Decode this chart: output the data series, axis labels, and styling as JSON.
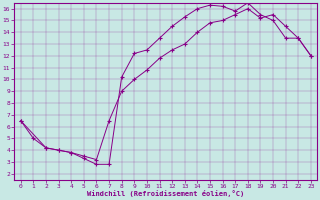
{
  "xlabel": "Windchill (Refroidissement éolien,°C)",
  "bg_color": "#c8e8e4",
  "line_color": "#880088",
  "xlim": [
    -0.5,
    23.5
  ],
  "ylim": [
    1.5,
    16.5
  ],
  "xticks": [
    0,
    1,
    2,
    3,
    4,
    5,
    6,
    7,
    8,
    9,
    10,
    11,
    12,
    13,
    14,
    15,
    16,
    17,
    18,
    19,
    20,
    21,
    22,
    23
  ],
  "yticks": [
    2,
    3,
    4,
    5,
    6,
    7,
    8,
    9,
    10,
    11,
    12,
    13,
    14,
    15,
    16
  ],
  "line1_x": [
    0,
    1,
    2,
    3,
    4,
    5,
    6,
    7,
    8,
    9,
    10,
    11,
    12,
    13,
    14,
    15,
    16,
    17,
    18,
    19,
    20,
    21,
    22,
    23
  ],
  "line1_y": [
    6.5,
    5.0,
    4.2,
    4.0,
    3.8,
    3.3,
    2.8,
    2.8,
    10.2,
    12.2,
    12.5,
    13.5,
    14.5,
    15.3,
    16.0,
    16.3,
    16.2,
    15.8,
    16.5,
    15.5,
    15.0,
    13.5,
    13.5,
    12.0
  ],
  "line2_x": [
    0,
    2,
    3,
    4,
    5,
    6,
    7,
    8,
    9,
    10,
    11,
    12,
    13,
    14,
    15,
    16,
    17,
    18,
    19,
    20,
    21,
    22,
    23
  ],
  "line2_y": [
    6.5,
    4.2,
    4.0,
    3.8,
    3.5,
    3.2,
    6.5,
    9.0,
    10.0,
    10.8,
    11.8,
    12.5,
    13.0,
    14.0,
    14.8,
    15.0,
    15.5,
    16.0,
    15.2,
    15.5,
    14.5,
    13.5,
    12.0
  ]
}
